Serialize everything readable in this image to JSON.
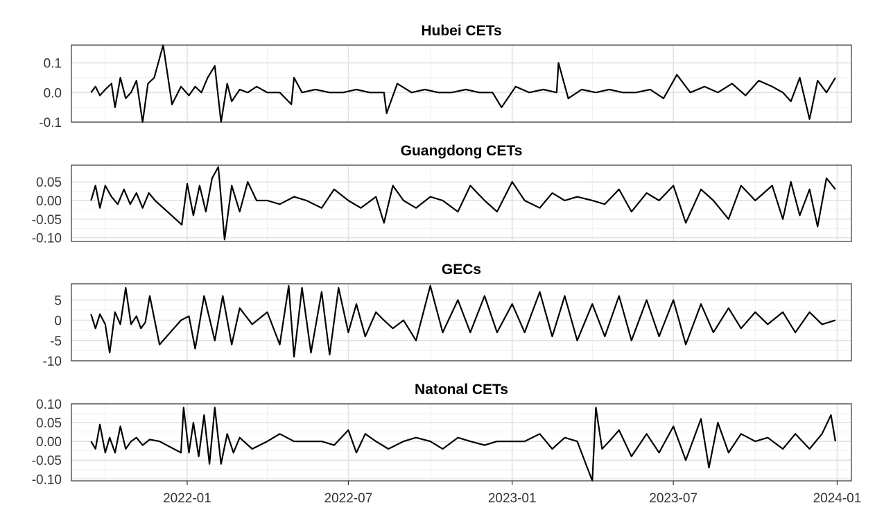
{
  "chart_data": [
    {
      "type": "line",
      "title": "Hubei CETs",
      "ylim": [
        -0.1,
        0.16
      ],
      "yticks": [
        0.1,
        0.0,
        -0.1
      ],
      "ytick_labels": [
        "0.1",
        "0.0",
        "-0.1"
      ],
      "series": [
        {
          "x": [
            "2021-09-15",
            "2021-09-20",
            "2021-09-25",
            "2021-10-01",
            "2021-10-08",
            "2021-10-12",
            "2021-10-18",
            "2021-10-24",
            "2021-10-30",
            "2021-11-05",
            "2021-11-12",
            "2021-11-18",
            "2021-11-25",
            "2021-12-05",
            "2021-12-15",
            "2021-12-25",
            "2022-01-03",
            "2022-01-10",
            "2022-01-17",
            "2022-01-24",
            "2022-02-01",
            "2022-02-08",
            "2022-02-15",
            "2022-02-20",
            "2022-03-01",
            "2022-03-10",
            "2022-03-20",
            "2022-04-01",
            "2022-04-15",
            "2022-04-28",
            "2022-05-01",
            "2022-05-10",
            "2022-05-25",
            "2022-06-10",
            "2022-06-25",
            "2022-07-10",
            "2022-07-25",
            "2022-08-10",
            "2022-08-13",
            "2022-08-25",
            "2022-09-10",
            "2022-09-25",
            "2022-10-10",
            "2022-10-25",
            "2022-11-10",
            "2022-11-25",
            "2022-12-10",
            "2022-12-20",
            "2023-01-05",
            "2023-01-20",
            "2023-02-05",
            "2023-02-20",
            "2023-02-22",
            "2023-03-05",
            "2023-03-20",
            "2023-04-05",
            "2023-04-20",
            "2023-05-05",
            "2023-05-20",
            "2023-06-05",
            "2023-06-20",
            "2023-07-05",
            "2023-07-20",
            "2023-08-05",
            "2023-08-20",
            "2023-09-05",
            "2023-09-20",
            "2023-10-05",
            "2023-10-20",
            "2023-11-01",
            "2023-11-10",
            "2023-11-20",
            "2023-12-01",
            "2023-12-10",
            "2023-12-20",
            "2023-12-30"
          ],
          "values": [
            0.0,
            0.02,
            -0.01,
            0.01,
            0.03,
            -0.05,
            0.05,
            -0.02,
            0.0,
            0.04,
            -0.1,
            0.03,
            0.05,
            0.16,
            -0.04,
            0.02,
            -0.01,
            0.02,
            0.0,
            0.05,
            0.09,
            -0.1,
            0.03,
            -0.03,
            0.01,
            0.0,
            0.02,
            0.0,
            0.0,
            -0.04,
            0.05,
            0.0,
            0.01,
            0.0,
            0.0,
            0.01,
            0.0,
            0.0,
            -0.07,
            0.03,
            0.0,
            0.01,
            0.0,
            0.0,
            0.01,
            0.0,
            0.0,
            -0.05,
            0.02,
            0.0,
            0.01,
            0.0,
            0.1,
            -0.02,
            0.01,
            0.0,
            0.01,
            0.0,
            0.0,
            0.01,
            -0.02,
            0.06,
            0.0,
            0.02,
            0.0,
            0.03,
            -0.01,
            0.04,
            0.02,
            0.0,
            -0.03,
            0.05,
            -0.09,
            0.04,
            0.0,
            0.05
          ]
        }
      ]
    },
    {
      "type": "line",
      "title": "Guangdong CETs",
      "ylim": [
        -0.11,
        0.095
      ],
      "yticks": [
        0.05,
        0.0,
        -0.05,
        -0.1
      ],
      "ytick_labels": [
        "0.05",
        "0.00",
        "-0.05",
        "-0.10"
      ],
      "series": [
        {
          "x": [
            "2021-09-15",
            "2021-09-20",
            "2021-09-25",
            "2021-10-01",
            "2021-10-08",
            "2021-10-15",
            "2021-10-22",
            "2021-10-29",
            "2021-11-05",
            "2021-11-12",
            "2021-11-19",
            "2021-11-26",
            "2021-12-26",
            "2022-01-01",
            "2022-01-08",
            "2022-01-15",
            "2022-01-22",
            "2022-01-29",
            "2022-02-05",
            "2022-02-12",
            "2022-02-20",
            "2022-03-01",
            "2022-03-10",
            "2022-03-20",
            "2022-04-01",
            "2022-04-15",
            "2022-05-01",
            "2022-05-15",
            "2022-06-01",
            "2022-06-15",
            "2022-07-01",
            "2022-07-15",
            "2022-08-01",
            "2022-08-10",
            "2022-08-20",
            "2022-09-01",
            "2022-09-15",
            "2022-10-01",
            "2022-10-15",
            "2022-11-01",
            "2022-11-15",
            "2022-12-01",
            "2022-12-15",
            "2023-01-01",
            "2023-01-15",
            "2023-02-01",
            "2023-02-15",
            "2023-03-01",
            "2023-03-15",
            "2023-04-01",
            "2023-04-15",
            "2023-05-01",
            "2023-05-15",
            "2023-06-01",
            "2023-06-15",
            "2023-07-01",
            "2023-07-15",
            "2023-08-01",
            "2023-08-15",
            "2023-09-01",
            "2023-09-15",
            "2023-10-01",
            "2023-10-20",
            "2023-11-01",
            "2023-11-10",
            "2023-11-20",
            "2023-12-01",
            "2023-12-10",
            "2023-12-20",
            "2023-12-30"
          ],
          "values": [
            0.0,
            0.04,
            -0.02,
            0.04,
            0.01,
            -0.01,
            0.03,
            -0.01,
            0.02,
            -0.02,
            0.02,
            0.0,
            -0.065,
            0.045,
            -0.04,
            0.04,
            -0.03,
            0.06,
            0.09,
            -0.105,
            0.04,
            -0.03,
            0.05,
            0.0,
            0.0,
            -0.01,
            0.01,
            0.0,
            -0.02,
            0.03,
            0.0,
            -0.02,
            0.01,
            -0.06,
            0.04,
            0.0,
            -0.02,
            0.01,
            0.0,
            -0.03,
            0.04,
            0.0,
            -0.03,
            0.05,
            0.0,
            -0.02,
            0.02,
            0.0,
            0.01,
            0.0,
            -0.01,
            0.03,
            -0.03,
            0.02,
            0.0,
            0.04,
            -0.06,
            0.03,
            0.0,
            -0.05,
            0.04,
            0.0,
            0.04,
            -0.05,
            0.05,
            -0.04,
            0.03,
            -0.07,
            0.06,
            0.03
          ]
        }
      ]
    },
    {
      "type": "line",
      "title": "GECs",
      "ylim": [
        -10,
        9
      ],
      "yticks": [
        5,
        0,
        -5,
        -10
      ],
      "ytick_labels": [
        "5",
        "0",
        "-5",
        "-10"
      ],
      "series": [
        {
          "x": [
            "2021-09-15",
            "2021-09-20",
            "2021-09-25",
            "2021-10-01",
            "2021-10-06",
            "2021-10-12",
            "2021-10-18",
            "2021-10-24",
            "2021-10-30",
            "2021-11-05",
            "2021-11-10",
            "2021-11-15",
            "2021-11-20",
            "2021-12-01",
            "2021-12-25",
            "2022-01-03",
            "2022-01-10",
            "2022-01-20",
            "2022-02-01",
            "2022-02-10",
            "2022-02-20",
            "2022-03-01",
            "2022-03-15",
            "2022-04-01",
            "2022-04-15",
            "2022-04-25",
            "2022-05-01",
            "2022-05-10",
            "2022-05-20",
            "2022-06-01",
            "2022-06-10",
            "2022-06-20",
            "2022-07-01",
            "2022-07-10",
            "2022-07-20",
            "2022-08-01",
            "2022-08-10",
            "2022-08-20",
            "2022-09-01",
            "2022-09-15",
            "2022-10-01",
            "2022-10-15",
            "2022-11-01",
            "2022-11-15",
            "2022-12-01",
            "2022-12-15",
            "2023-01-01",
            "2023-01-15",
            "2023-02-01",
            "2023-02-15",
            "2023-03-01",
            "2023-03-15",
            "2023-04-01",
            "2023-04-15",
            "2023-05-01",
            "2023-05-15",
            "2023-06-01",
            "2023-06-15",
            "2023-07-01",
            "2023-07-15",
            "2023-08-01",
            "2023-08-15",
            "2023-09-01",
            "2023-09-15",
            "2023-10-01",
            "2023-10-15",
            "2023-11-01",
            "2023-11-15",
            "2023-12-01",
            "2023-12-15",
            "2023-12-30"
          ],
          "values": [
            1.5,
            -2,
            1.5,
            -1,
            -8,
            2,
            -1,
            8,
            -1,
            1,
            -2,
            -0.5,
            6,
            -6,
            0,
            1,
            -7,
            6,
            -5,
            6,
            -6,
            3,
            -1,
            2,
            -6,
            8.5,
            -9,
            8,
            -8,
            7,
            -8.5,
            8,
            -3,
            4,
            -4,
            2,
            0,
            -2,
            0,
            -5,
            8.5,
            -3,
            5,
            -3,
            6,
            -3,
            4,
            -3,
            7,
            -4,
            6,
            -5,
            4,
            -4,
            6,
            -5,
            5,
            -4,
            5,
            -6,
            4,
            -3,
            3,
            -2,
            2,
            -1,
            2,
            -3,
            2,
            -1,
            0
          ]
        }
      ]
    },
    {
      "type": "line",
      "title": "Natonal CETs",
      "ylim": [
        -0.105,
        0.1
      ],
      "yticks": [
        0.1,
        0.05,
        0.0,
        -0.05,
        -0.1
      ],
      "ytick_labels": [
        "0.10",
        "0.05",
        "0.00",
        "-0.05",
        "-0.10"
      ],
      "series": [
        {
          "x": [
            "2021-09-15",
            "2021-09-20",
            "2021-09-25",
            "2021-10-01",
            "2021-10-06",
            "2021-10-12",
            "2021-10-18",
            "2021-10-24",
            "2021-10-30",
            "2021-11-05",
            "2021-11-12",
            "2021-11-20",
            "2021-12-01",
            "2021-12-25",
            "2021-12-28",
            "2022-01-03",
            "2022-01-08",
            "2022-01-14",
            "2022-01-20",
            "2022-01-26",
            "2022-02-01",
            "2022-02-08",
            "2022-02-15",
            "2022-02-22",
            "2022-03-01",
            "2022-03-15",
            "2022-04-01",
            "2022-04-15",
            "2022-05-01",
            "2022-05-15",
            "2022-06-01",
            "2022-06-15",
            "2022-07-01",
            "2022-07-10",
            "2022-07-20",
            "2022-08-01",
            "2022-08-15",
            "2022-09-01",
            "2022-09-15",
            "2022-10-01",
            "2022-10-15",
            "2022-11-01",
            "2022-11-15",
            "2022-12-01",
            "2022-12-15",
            "2023-01-01",
            "2023-01-15",
            "2023-02-01",
            "2023-02-15",
            "2023-03-01",
            "2023-03-15",
            "2023-04-01",
            "2023-04-05",
            "2023-04-12",
            "2023-04-20",
            "2023-05-01",
            "2023-05-15",
            "2023-06-01",
            "2023-06-15",
            "2023-07-01",
            "2023-07-15",
            "2023-08-01",
            "2023-08-10",
            "2023-08-20",
            "2023-09-01",
            "2023-09-15",
            "2023-10-01",
            "2023-10-15",
            "2023-11-01",
            "2023-11-15",
            "2023-12-01",
            "2023-12-15",
            "2023-12-25",
            "2023-12-30"
          ],
          "values": [
            0.0,
            -0.02,
            0.045,
            -0.03,
            0.01,
            -0.03,
            0.04,
            -0.02,
            0.0,
            0.01,
            -0.01,
            0.005,
            0.0,
            -0.03,
            0.09,
            -0.03,
            0.05,
            -0.04,
            0.07,
            -0.06,
            0.09,
            -0.06,
            0.02,
            -0.03,
            0.01,
            -0.02,
            0.0,
            0.02,
            0.0,
            0.0,
            0.0,
            -0.01,
            0.03,
            -0.03,
            0.02,
            0.0,
            -0.02,
            0.0,
            0.01,
            0.0,
            -0.02,
            0.01,
            0.0,
            -0.01,
            0.0,
            0.0,
            0.0,
            0.02,
            -0.02,
            0.01,
            0.0,
            -0.105,
            0.09,
            -0.02,
            0.0,
            0.03,
            -0.04,
            0.02,
            -0.03,
            0.04,
            -0.05,
            0.06,
            -0.07,
            0.05,
            -0.03,
            0.02,
            0.0,
            0.01,
            -0.02,
            0.02,
            -0.02,
            0.02,
            0.07,
            0.0
          ]
        }
      ]
    }
  ],
  "x_axis": {
    "tick_dates": [
      "2022-01-01",
      "2022-07-01",
      "2023-01-01",
      "2023-07-01",
      "2024-01-01"
    ],
    "tick_labels": [
      "2022-01",
      "2022-07",
      "2023-01",
      "2023-07",
      "2024-01"
    ]
  },
  "style": {
    "line_color": "#000000",
    "grid_major": "#e2e2e2",
    "grid_minor": "#f0f0f0",
    "border_color": "#333333"
  }
}
